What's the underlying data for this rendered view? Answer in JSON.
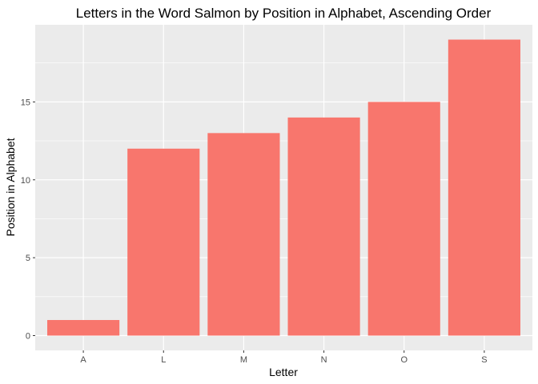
{
  "chart_data": {
    "type": "bar",
    "title": "Letters in the Word Salmon by Position in Alphabet, Ascending Order",
    "xlabel": "Letter",
    "ylabel": "Position in Alphabet",
    "categories": [
      "A",
      "L",
      "M",
      "N",
      "O",
      "S"
    ],
    "values": [
      1,
      12,
      13,
      14,
      15,
      19
    ],
    "ylim": [
      -0.95,
      19.95
    ],
    "yticks": [
      0,
      5,
      10,
      15
    ],
    "grid": true,
    "legend": "none",
    "bar_color": "#F8766D",
    "panel_color": "#EBEBEB",
    "grid_color": "#FFFFFF"
  }
}
